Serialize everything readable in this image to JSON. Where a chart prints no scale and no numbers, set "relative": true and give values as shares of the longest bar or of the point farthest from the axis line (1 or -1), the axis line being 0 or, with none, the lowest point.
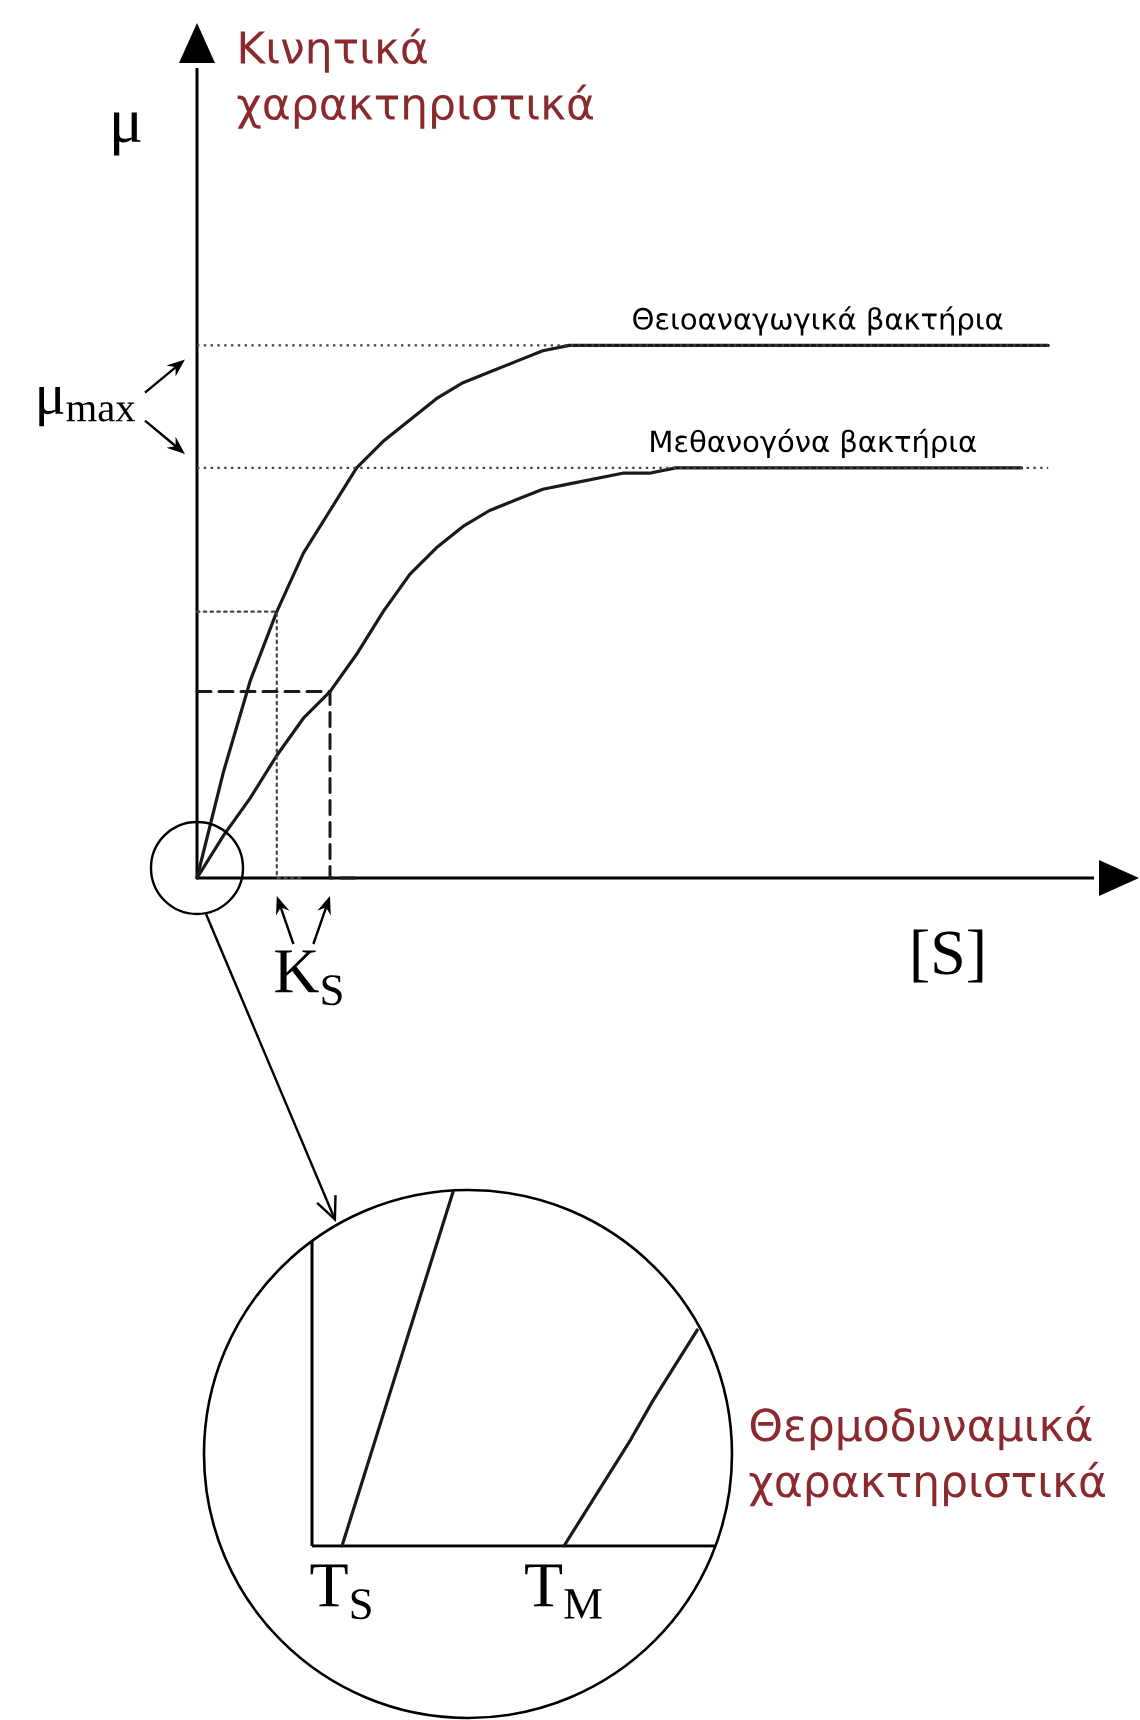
{
  "chart_data": [
    {
      "type": "line",
      "title": "Κινητικά χαρακτηριστικά",
      "xlabel": "[S]",
      "ylabel": "μ",
      "relative": true,
      "categories": [
        null,
        null,
        null,
        null,
        null,
        null,
        null,
        null,
        null,
        null,
        null,
        null,
        null,
        null,
        null,
        null,
        null,
        null,
        null,
        null,
        null,
        null,
        null,
        null,
        null,
        null,
        null,
        null,
        null,
        null,
        null,
        null,
        null
      ],
      "series": [
        {
          "name": "Θειοαναγωγικά βακτήρια",
          "color": "#1a1a1a",
          "values": [
            0,
            0.2,
            0.37,
            0.5,
            0.61,
            0.69,
            0.77,
            0.82,
            0.86,
            0.9,
            0.93,
            0.95,
            0.97,
            0.99,
            1,
            1,
            1,
            1,
            1,
            1,
            1,
            1,
            1,
            1,
            1,
            1,
            1,
            1,
            1,
            1,
            1,
            1,
            1
          ]
        },
        {
          "name": "Μεθανογόνα βακτήρια",
          "color": "#1a1a1a",
          "values": [
            0,
            0.08,
            0.15,
            0.23,
            0.3,
            0.35,
            0.42,
            0.5,
            0.57,
            0.62,
            0.66,
            0.69,
            0.71,
            0.73,
            0.74,
            0.75,
            0.76,
            0.76,
            0.77,
            0.77,
            0.77,
            0.77,
            0.77,
            0.77,
            0.77,
            0.77,
            0.77,
            0.77,
            0.77,
            0.77,
            0.77,
            0.77,
            null
          ]
        },
        {
          "type": "step",
          "line_style": "dotted",
          "color": "#444444",
          "values": [
            0.5,
            0.5,
            0.5,
            0.5,
            0,
            null,
            null,
            null,
            null,
            null,
            null,
            null,
            null,
            null,
            null,
            null,
            null,
            null,
            null,
            null,
            null,
            null,
            null,
            null,
            null,
            null,
            null,
            null,
            null,
            null,
            null,
            null,
            null
          ]
        },
        {
          "type": "step",
          "line_style": "dashed",
          "color": "#1a1a1a",
          "values": [
            0.35,
            0.35,
            0.35,
            0.35,
            0.35,
            0.35,
            0,
            null,
            null,
            null,
            null,
            null,
            null,
            null,
            null,
            null,
            null,
            null,
            null,
            null,
            null,
            null,
            null,
            null,
            null,
            null,
            null,
            null,
            null,
            null,
            null,
            null,
            null
          ]
        }
      ],
      "ref_lines": [
        {
          "axis": "y",
          "value": 1,
          "line_style": "dotted",
          "color": "#444444"
        },
        {
          "axis": "y",
          "value": 0.77,
          "line_style": "dotted",
          "color": "#444444"
        }
      ],
      "annotations": [
        "μ$_{max}$",
        "K$_{S}$"
      ]
    },
    {
      "type": "line",
      "relative": true,
      "categories": [
        "T$_{S}$",
        null,
        null,
        null,
        null,
        null,
        null,
        null,
        null,
        null,
        "T$_{M}$",
        null,
        null,
        null,
        null,
        null,
        null
      ],
      "series": [
        {
          "color": "#1a1a1a",
          "values": [
            0,
            0.2,
            0.4,
            0.6,
            0.8,
            1,
            null,
            null,
            null,
            null,
            null,
            null,
            null,
            null,
            null,
            null,
            null
          ]
        },
        {
          "color": "#1a1a1a",
          "values": [
            null,
            null,
            null,
            null,
            null,
            null,
            null,
            null,
            null,
            null,
            0,
            0.1,
            0.2,
            0.3,
            0.41,
            0.51,
            0.61
          ]
        }
      ],
      "annotations": [
        "Θερμοδυναμικά χαρακτηριστικά"
      ]
    }
  ]
}
